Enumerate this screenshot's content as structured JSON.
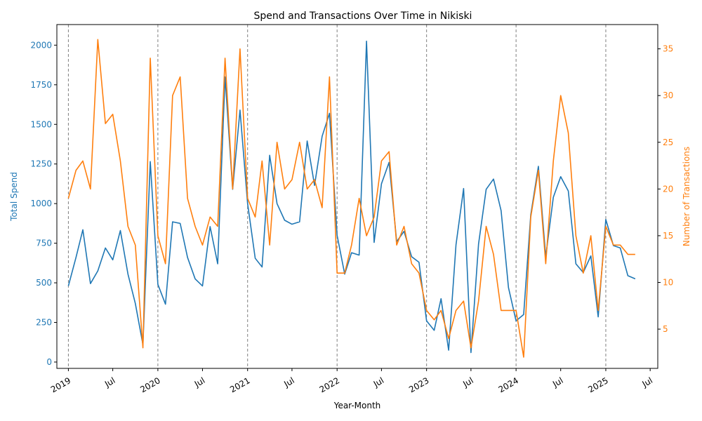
{
  "chart_data": {
    "type": "line",
    "title": "Spend and Transactions Over Time in Nikiski",
    "xlabel": "Year-Month",
    "ylabel_left": "Total Spend",
    "ylabel_right": "Number of Transactions",
    "xlim": [
      "2018-11-15",
      "2025-08-01"
    ],
    "ylim_left": [
      -40,
      2130
    ],
    "ylim_right": [
      0.8,
      37.6
    ],
    "x_ticks": [
      {
        "date": "2019-01",
        "label": "2019"
      },
      {
        "date": "2019-07",
        "label": "Jul"
      },
      {
        "date": "2020-01",
        "label": "2020"
      },
      {
        "date": "2020-07",
        "label": "Jul"
      },
      {
        "date": "2021-01",
        "label": "2021"
      },
      {
        "date": "2021-07",
        "label": "Jul"
      },
      {
        "date": "2022-01",
        "label": "2022"
      },
      {
        "date": "2022-07",
        "label": "Jul"
      },
      {
        "date": "2023-01",
        "label": "2023"
      },
      {
        "date": "2023-07",
        "label": "Jul"
      },
      {
        "date": "2024-01",
        "label": "2024"
      },
      {
        "date": "2024-07",
        "label": "Jul"
      },
      {
        "date": "2025-01",
        "label": "2025"
      },
      {
        "date": "2025-07",
        "label": "Jul"
      }
    ],
    "y_ticks_left": [
      0,
      250,
      500,
      750,
      1000,
      1250,
      1500,
      1750,
      2000
    ],
    "y_ticks_right": [
      5,
      10,
      15,
      20,
      25,
      30,
      35
    ],
    "year_lines": [
      "2019-01",
      "2020-01",
      "2021-01",
      "2022-01",
      "2023-01",
      "2024-01",
      "2025-01"
    ],
    "grid": false,
    "legend": "none",
    "colors": {
      "spend": "#1f77b4",
      "transactions": "#ff7f0e",
      "year_line": "#808080"
    },
    "x": [
      "2019-01",
      "2019-02",
      "2019-03",
      "2019-04",
      "2019-05",
      "2019-06",
      "2019-07",
      "2019-08",
      "2019-09",
      "2019-10",
      "2019-11",
      "2019-12",
      "2020-01",
      "2020-02",
      "2020-03",
      "2020-04",
      "2020-05",
      "2020-06",
      "2020-07",
      "2020-08",
      "2020-09",
      "2020-10",
      "2020-11",
      "2020-12",
      "2021-01",
      "2021-02",
      "2021-03",
      "2021-04",
      "2021-05",
      "2021-06",
      "2021-07",
      "2021-08",
      "2021-09",
      "2021-10",
      "2021-11",
      "2021-12",
      "2022-01",
      "2022-02",
      "2022-03",
      "2022-04",
      "2022-05",
      "2022-06",
      "2022-07",
      "2022-08",
      "2022-09",
      "2022-10",
      "2022-11",
      "2022-12",
      "2023-01",
      "2023-02",
      "2023-03",
      "2023-04",
      "2023-05",
      "2023-06",
      "2023-07",
      "2023-08",
      "2023-09",
      "2023-10",
      "2023-11",
      "2023-12",
      "2024-01",
      "2024-02",
      "2024-03",
      "2024-04",
      "2024-05",
      "2024-06",
      "2024-07",
      "2024-08",
      "2024-09",
      "2024-10",
      "2024-11",
      "2024-12",
      "2025-01",
      "2025-02",
      "2025-03",
      "2025-04",
      "2025-05"
    ],
    "series": [
      {
        "name": "Total Spend",
        "axis": "left",
        "values": [
          480,
          660,
          835,
          495,
          575,
          720,
          645,
          830,
          555,
          370,
          110,
          1265,
          490,
          365,
          885,
          875,
          660,
          525,
          480,
          855,
          620,
          1800,
          1090,
          1590,
          1000,
          655,
          600,
          1305,
          1000,
          895,
          870,
          885,
          1395,
          1115,
          1425,
          1570,
          800,
          555,
          690,
          675,
          2025,
          755,
          1125,
          1260,
          760,
          825,
          665,
          630,
          260,
          200,
          400,
          75,
          740,
          1095,
          60,
          745,
          1090,
          1155,
          955,
          470,
          260,
          300,
          930,
          1235,
          665,
          1040,
          1170,
          1080,
          620,
          565,
          670,
          285,
          900,
          735,
          720,
          545,
          525
        ]
      },
      {
        "name": "Number of Transactions",
        "axis": "right",
        "values": [
          19,
          22,
          23,
          20,
          36,
          27,
          28,
          23,
          16,
          14,
          3,
          34,
          15,
          12,
          30,
          32,
          19,
          16,
          14,
          17,
          16,
          34,
          20,
          35,
          19,
          17,
          23,
          14,
          25,
          20,
          21,
          25,
          20,
          21,
          18,
          32,
          11,
          11,
          14,
          19,
          15,
          17,
          23,
          24,
          14,
          16,
          12,
          11,
          7,
          6,
          7,
          4,
          7,
          8,
          3,
          8,
          16,
          13,
          7,
          7,
          7,
          2,
          17,
          22,
          12,
          23,
          30,
          26,
          15,
          11,
          15,
          7,
          16,
          14,
          14,
          13,
          13
        ]
      }
    ]
  }
}
